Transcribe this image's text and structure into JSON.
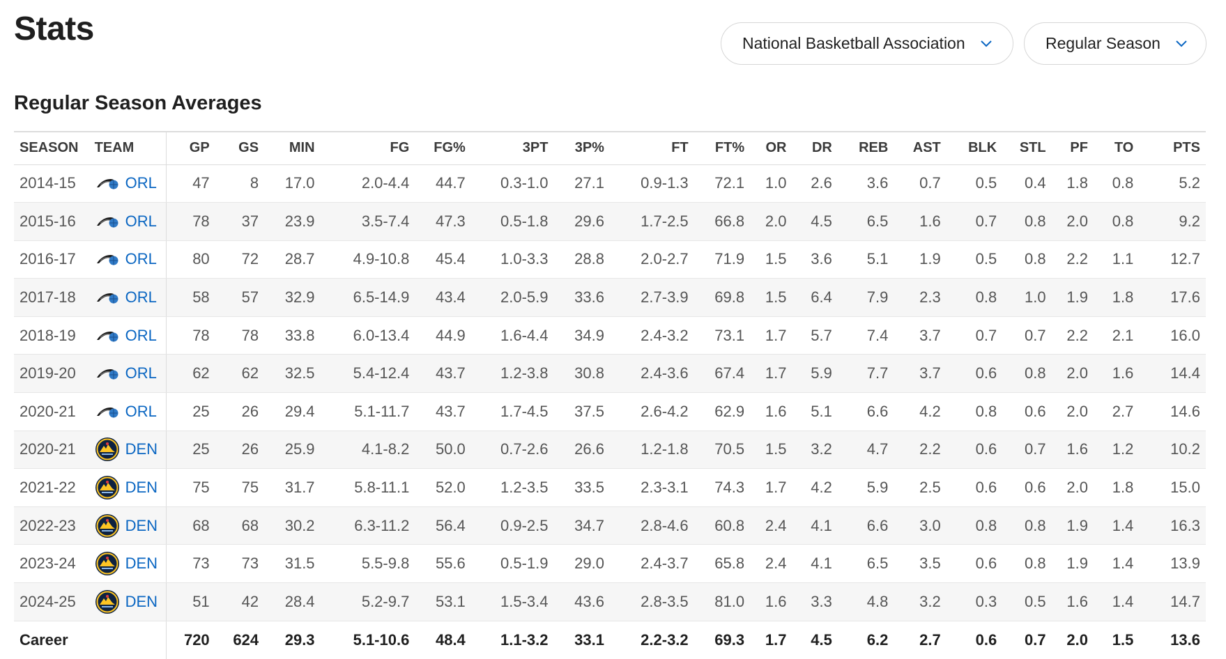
{
  "page": {
    "title": "Stats"
  },
  "filters": {
    "league": {
      "label": "National Basketball Association",
      "icon": "chevron-down-icon"
    },
    "season_type": {
      "label": "Regular Season",
      "icon": "chevron-down-icon"
    }
  },
  "section": {
    "title": "Regular Season Averages"
  },
  "colors": {
    "link": "#0a66c2",
    "magic_blue": "#2f7ac7",
    "nuggets_navy": "#0e2240",
    "nuggets_gold": "#fec524"
  },
  "table": {
    "columns": [
      "SEASON",
      "TEAM",
      "GP",
      "GS",
      "MIN",
      "FG",
      "FG%",
      "3PT",
      "3P%",
      "FT",
      "FT%",
      "OR",
      "DR",
      "REB",
      "AST",
      "BLK",
      "STL",
      "PF",
      "TO",
      "PTS"
    ],
    "rows": [
      {
        "season": "2014-15",
        "team": "ORL",
        "logo": "orl",
        "gp": "47",
        "gs": "8",
        "min": "17.0",
        "fg": "2.0-4.4",
        "fgp": "44.7",
        "tpt": "0.3-1.0",
        "tpp": "27.1",
        "ft": "0.9-1.3",
        "ftp": "72.1",
        "or": "1.0",
        "dr": "2.6",
        "reb": "3.6",
        "ast": "0.7",
        "blk": "0.5",
        "stl": "0.4",
        "pf": "1.8",
        "to": "0.8",
        "pts": "5.2"
      },
      {
        "season": "2015-16",
        "team": "ORL",
        "logo": "orl",
        "gp": "78",
        "gs": "37",
        "min": "23.9",
        "fg": "3.5-7.4",
        "fgp": "47.3",
        "tpt": "0.5-1.8",
        "tpp": "29.6",
        "ft": "1.7-2.5",
        "ftp": "66.8",
        "or": "2.0",
        "dr": "4.5",
        "reb": "6.5",
        "ast": "1.6",
        "blk": "0.7",
        "stl": "0.8",
        "pf": "2.0",
        "to": "0.8",
        "pts": "9.2"
      },
      {
        "season": "2016-17",
        "team": "ORL",
        "logo": "orl",
        "gp": "80",
        "gs": "72",
        "min": "28.7",
        "fg": "4.9-10.8",
        "fgp": "45.4",
        "tpt": "1.0-3.3",
        "tpp": "28.8",
        "ft": "2.0-2.7",
        "ftp": "71.9",
        "or": "1.5",
        "dr": "3.6",
        "reb": "5.1",
        "ast": "1.9",
        "blk": "0.5",
        "stl": "0.8",
        "pf": "2.2",
        "to": "1.1",
        "pts": "12.7"
      },
      {
        "season": "2017-18",
        "team": "ORL",
        "logo": "orl",
        "gp": "58",
        "gs": "57",
        "min": "32.9",
        "fg": "6.5-14.9",
        "fgp": "43.4",
        "tpt": "2.0-5.9",
        "tpp": "33.6",
        "ft": "2.7-3.9",
        "ftp": "69.8",
        "or": "1.5",
        "dr": "6.4",
        "reb": "7.9",
        "ast": "2.3",
        "blk": "0.8",
        "stl": "1.0",
        "pf": "1.9",
        "to": "1.8",
        "pts": "17.6"
      },
      {
        "season": "2018-19",
        "team": "ORL",
        "logo": "orl",
        "gp": "78",
        "gs": "78",
        "min": "33.8",
        "fg": "6.0-13.4",
        "fgp": "44.9",
        "tpt": "1.6-4.4",
        "tpp": "34.9",
        "ft": "2.4-3.2",
        "ftp": "73.1",
        "or": "1.7",
        "dr": "5.7",
        "reb": "7.4",
        "ast": "3.7",
        "blk": "0.7",
        "stl": "0.7",
        "pf": "2.2",
        "to": "2.1",
        "pts": "16.0"
      },
      {
        "season": "2019-20",
        "team": "ORL",
        "logo": "orl",
        "gp": "62",
        "gs": "62",
        "min": "32.5",
        "fg": "5.4-12.4",
        "fgp": "43.7",
        "tpt": "1.2-3.8",
        "tpp": "30.8",
        "ft": "2.4-3.6",
        "ftp": "67.4",
        "or": "1.7",
        "dr": "5.9",
        "reb": "7.7",
        "ast": "3.7",
        "blk": "0.6",
        "stl": "0.8",
        "pf": "2.0",
        "to": "1.6",
        "pts": "14.4"
      },
      {
        "season": "2020-21",
        "team": "ORL",
        "logo": "orl",
        "gp": "25",
        "gs": "26",
        "min": "29.4",
        "fg": "5.1-11.7",
        "fgp": "43.7",
        "tpt": "1.7-4.5",
        "tpp": "37.5",
        "ft": "2.6-4.2",
        "ftp": "62.9",
        "or": "1.6",
        "dr": "5.1",
        "reb": "6.6",
        "ast": "4.2",
        "blk": "0.8",
        "stl": "0.6",
        "pf": "2.0",
        "to": "2.7",
        "pts": "14.6"
      },
      {
        "season": "2020-21",
        "team": "DEN",
        "logo": "den",
        "gp": "25",
        "gs": "26",
        "min": "25.9",
        "fg": "4.1-8.2",
        "fgp": "50.0",
        "tpt": "0.7-2.6",
        "tpp": "26.6",
        "ft": "1.2-1.8",
        "ftp": "70.5",
        "or": "1.5",
        "dr": "3.2",
        "reb": "4.7",
        "ast": "2.2",
        "blk": "0.6",
        "stl": "0.7",
        "pf": "1.6",
        "to": "1.2",
        "pts": "10.2"
      },
      {
        "season": "2021-22",
        "team": "DEN",
        "logo": "den",
        "gp": "75",
        "gs": "75",
        "min": "31.7",
        "fg": "5.8-11.1",
        "fgp": "52.0",
        "tpt": "1.2-3.5",
        "tpp": "33.5",
        "ft": "2.3-3.1",
        "ftp": "74.3",
        "or": "1.7",
        "dr": "4.2",
        "reb": "5.9",
        "ast": "2.5",
        "blk": "0.6",
        "stl": "0.6",
        "pf": "2.0",
        "to": "1.8",
        "pts": "15.0"
      },
      {
        "season": "2022-23",
        "team": "DEN",
        "logo": "den",
        "gp": "68",
        "gs": "68",
        "min": "30.2",
        "fg": "6.3-11.2",
        "fgp": "56.4",
        "tpt": "0.9-2.5",
        "tpp": "34.7",
        "ft": "2.8-4.6",
        "ftp": "60.8",
        "or": "2.4",
        "dr": "4.1",
        "reb": "6.6",
        "ast": "3.0",
        "blk": "0.8",
        "stl": "0.8",
        "pf": "1.9",
        "to": "1.4",
        "pts": "16.3"
      },
      {
        "season": "2023-24",
        "team": "DEN",
        "logo": "den",
        "gp": "73",
        "gs": "73",
        "min": "31.5",
        "fg": "5.5-9.8",
        "fgp": "55.6",
        "tpt": "0.5-1.9",
        "tpp": "29.0",
        "ft": "2.4-3.7",
        "ftp": "65.8",
        "or": "2.4",
        "dr": "4.1",
        "reb": "6.5",
        "ast": "3.5",
        "blk": "0.6",
        "stl": "0.8",
        "pf": "1.9",
        "to": "1.4",
        "pts": "13.9"
      },
      {
        "season": "2024-25",
        "team": "DEN",
        "logo": "den",
        "gp": "51",
        "gs": "42",
        "min": "28.4",
        "fg": "5.2-9.7",
        "fgp": "53.1",
        "tpt": "1.5-3.4",
        "tpp": "43.6",
        "ft": "2.8-3.5",
        "ftp": "81.0",
        "or": "1.6",
        "dr": "3.3",
        "reb": "4.8",
        "ast": "3.2",
        "blk": "0.3",
        "stl": "0.5",
        "pf": "1.6",
        "to": "1.4",
        "pts": "14.7"
      }
    ],
    "career": {
      "label": "Career",
      "gp": "720",
      "gs": "624",
      "min": "29.3",
      "fg": "5.1-10.6",
      "fgp": "48.4",
      "tpt": "1.1-3.2",
      "tpp": "33.1",
      "ft": "2.2-3.2",
      "ftp": "69.3",
      "or": "1.7",
      "dr": "4.5",
      "reb": "6.2",
      "ast": "2.7",
      "blk": "0.6",
      "stl": "0.7",
      "pf": "2.0",
      "to": "1.5",
      "pts": "13.6"
    }
  }
}
